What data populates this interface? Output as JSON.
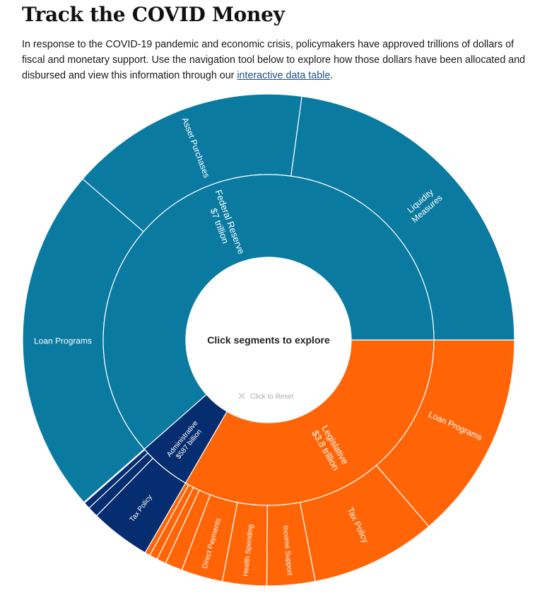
{
  "header": {
    "title": "Track the COVID Money",
    "intro_text": "In response to the COVID-19 pandemic and economic crisis, policymakers have approved trillions of dollars of fiscal and monetary support. Use the navigation tool below to explore how those dollars have been allocated and disbursed and view this information through our ",
    "link_text": "interactive data table",
    "intro_end": "."
  },
  "chart_data": {
    "type": "sunburst",
    "center_label": "Click segments to explore",
    "reset_label": "Click to Reset",
    "reset_icon": "close-icon",
    "colors": {
      "legislative": "#ff6507",
      "administrative": "#062d6f",
      "federal_reserve": "#0a7aa0",
      "divider": "#ffffff"
    },
    "inner": [
      {
        "id": "legislative",
        "name": "Legislative",
        "amount": "$3.8 trillion",
        "value": 3.8
      },
      {
        "id": "administrative",
        "name": "Administrative",
        "amount": "$587 billion",
        "value": 0.587
      },
      {
        "id": "federal_reserve",
        "name": "Federal Reserve",
        "amount": "$7 trillion",
        "value": 7.0
      }
    ],
    "outer": [
      {
        "parent": "legislative",
        "name": "Loan Programs",
        "value": 1.56
      },
      {
        "parent": "legislative",
        "name": "Tax Policy",
        "value": 0.94
      },
      {
        "parent": "legislative",
        "name": "Income Support",
        "value": 0.36
      },
      {
        "parent": "legislative",
        "name": "Health Spending",
        "value": 0.33
      },
      {
        "parent": "legislative",
        "name": "Direct Payments",
        "value": 0.31
      },
      {
        "parent": "legislative",
        "name": "",
        "value": 0.13
      },
      {
        "parent": "legislative",
        "name": "",
        "value": 0.07
      },
      {
        "parent": "legislative",
        "name": "",
        "value": 0.06
      },
      {
        "parent": "legislative",
        "name": "",
        "value": 0.04
      },
      {
        "parent": "administrative",
        "name": "Tax Policy",
        "value": 0.45
      },
      {
        "parent": "administrative",
        "name": "",
        "value": 0.08
      },
      {
        "parent": "administrative",
        "name": "",
        "value": 0.05
      },
      {
        "parent": "administrative",
        "name": "",
        "value": 0.007
      },
      {
        "parent": "federal_reserve",
        "name": "Loan Programs",
        "value": 2.6
      },
      {
        "parent": "federal_reserve",
        "name": "Asset Purchases",
        "value": 1.8
      },
      {
        "parent": "federal_reserve",
        "name": "Liquidity Measures",
        "value": 2.6
      }
    ]
  }
}
